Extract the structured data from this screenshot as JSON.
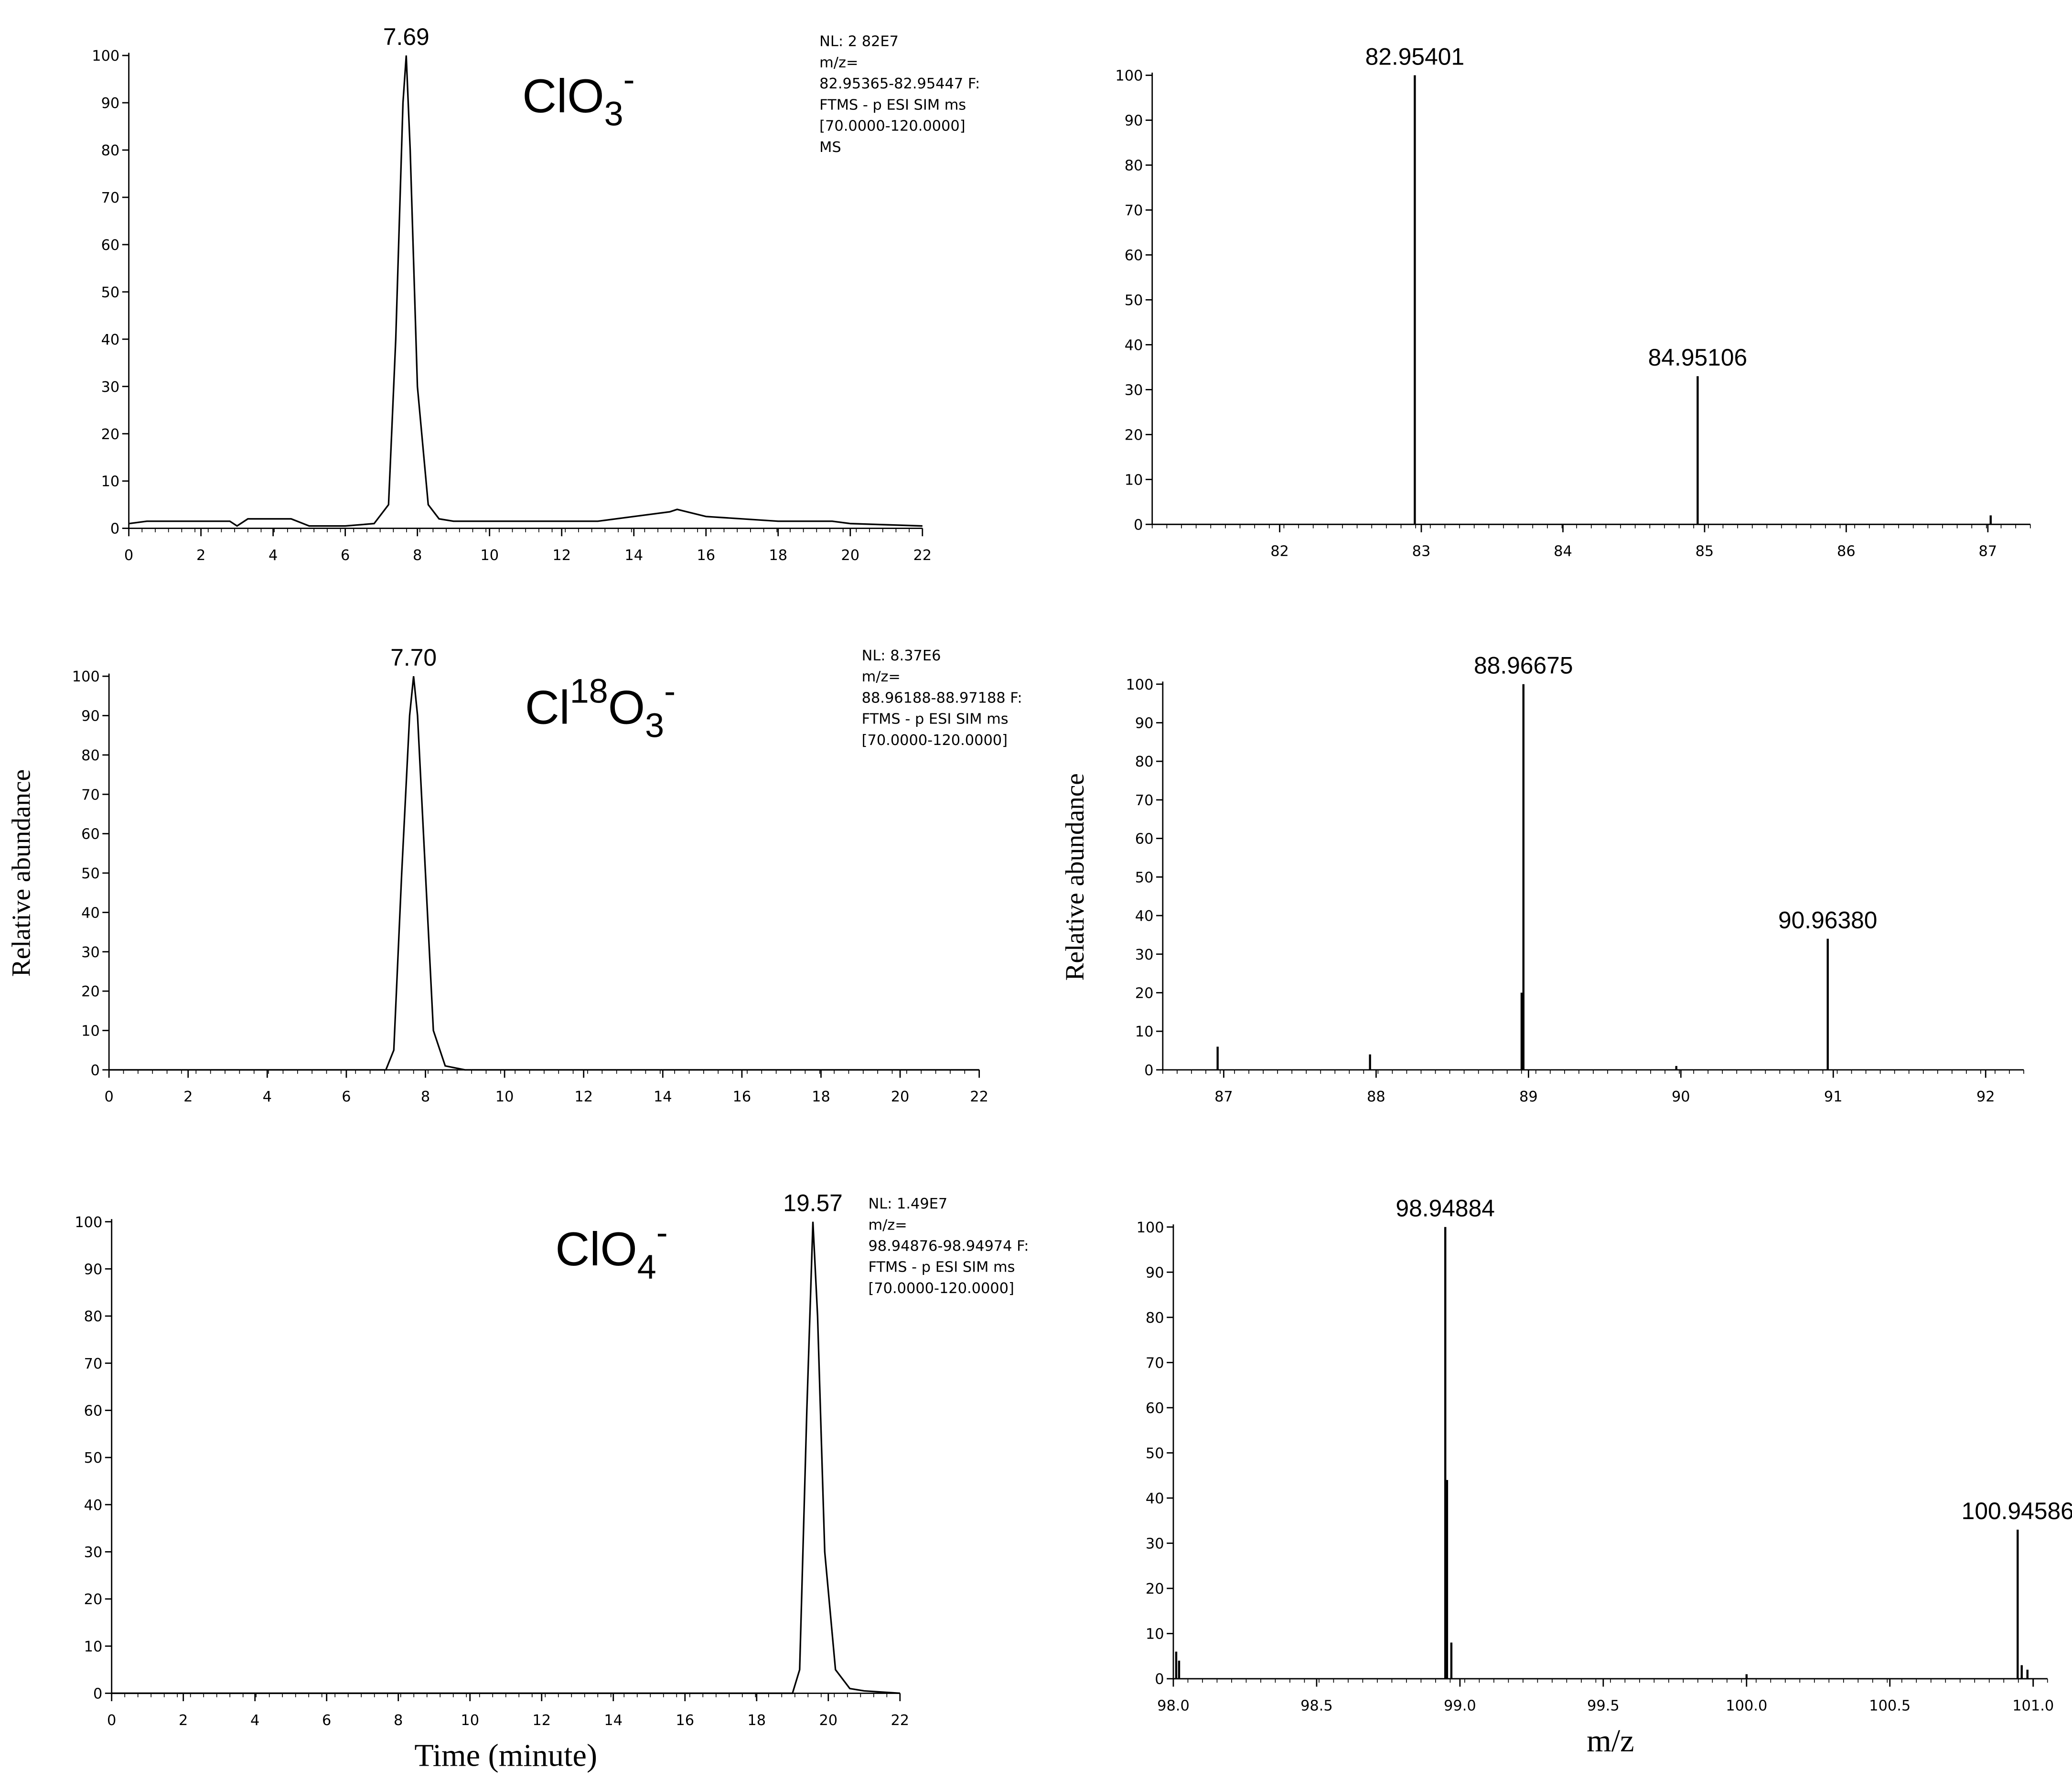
{
  "chart_data": [
    {
      "type": "line",
      "color": "#000000",
      "species": [
        {
          "text": "ClO"
        },
        {
          "text": "3",
          "position": "sub"
        },
        {
          "text": "-",
          "position": "sup"
        }
      ],
      "info": [
        "NL: 2 82E7",
        "m/z=",
        "82.95365-82.95447 F:",
        "FTMS - p ESI SIM ms",
        "[70.0000-120.0000]",
        "MS"
      ],
      "annotations": [
        {
          "x": 7.69,
          "y": 100,
          "label": "7.69"
        }
      ],
      "x": [
        0,
        0.5,
        1,
        2,
        2.8,
        3,
        3.3,
        4,
        4.5,
        5,
        6,
        6.8,
        7.2,
        7.4,
        7.6,
        7.69,
        7.8,
        8.0,
        8.3,
        8.6,
        9,
        10,
        12,
        13,
        14,
        15,
        15.2,
        16,
        18,
        19.5,
        20,
        22
      ],
      "values": [
        1,
        1.5,
        1.5,
        1.5,
        1.5,
        0.5,
        2,
        2,
        2,
        0.5,
        0.5,
        1,
        5,
        40,
        90,
        100,
        80,
        30,
        5,
        2,
        1.5,
        1.5,
        1.5,
        1.5,
        2.5,
        3.5,
        4,
        2.5,
        1.5,
        1.5,
        1,
        0.5
      ],
      "xlim": [
        0,
        22
      ],
      "xticks": [
        0,
        2,
        4,
        6,
        8,
        10,
        12,
        14,
        16,
        18,
        20,
        22
      ],
      "ylim": [
        0,
        100
      ],
      "yticks": [
        0,
        10,
        20,
        30,
        40,
        50,
        60,
        70,
        80,
        90,
        100
      ]
    },
    {
      "type": "line",
      "color": "#000000",
      "y_label": "Relative abundance",
      "species": [
        {
          "text": "Cl"
        },
        {
          "text": "18",
          "position": "sup"
        },
        {
          "text": "O"
        },
        {
          "text": "3",
          "position": "sub"
        },
        {
          "text": "-",
          "position": "sup"
        }
      ],
      "info": [
        "NL: 8.37E6",
        "m/z=",
        "88.96188-88.97188 F:",
        "FTMS - p ESI SIM ms",
        "[70.0000-120.0000]"
      ],
      "annotations": [
        {
          "x": 7.7,
          "y": 100,
          "label": "7.70"
        }
      ],
      "x": [
        0,
        2,
        4,
        6,
        7,
        7.2,
        7.4,
        7.6,
        7.7,
        7.8,
        8.0,
        8.2,
        8.5,
        9,
        10,
        22
      ],
      "values": [
        0,
        0,
        0,
        0,
        0,
        5,
        50,
        90,
        100,
        90,
        50,
        10,
        1,
        0,
        0,
        0
      ],
      "xlim": [
        0,
        22
      ],
      "xticks": [
        0,
        2,
        4,
        6,
        8,
        10,
        12,
        14,
        16,
        18,
        20,
        22
      ],
      "ylim": [
        0,
        100
      ],
      "yticks": [
        0,
        10,
        20,
        30,
        40,
        50,
        60,
        70,
        80,
        90,
        100
      ]
    },
    {
      "type": "line",
      "color": "#000000",
      "x_label": "Time (minute)",
      "species": [
        {
          "text": "ClO"
        },
        {
          "text": "4",
          "position": "sub"
        },
        {
          "text": "-",
          "position": "sup"
        }
      ],
      "info": [
        "NL: 1.49E7",
        "m/z=",
        "98.94876-98.94974 F:",
        "FTMS - p ESI SIM ms",
        "[70.0000-120.0000]"
      ],
      "annotations": [
        {
          "x": 19.57,
          "y": 100,
          "label": "19.57"
        }
      ],
      "x": [
        0,
        18,
        19,
        19.2,
        19.4,
        19.57,
        19.7,
        19.9,
        20.2,
        20.6,
        21,
        22
      ],
      "values": [
        0,
        0,
        0,
        5,
        60,
        100,
        80,
        30,
        5,
        1,
        0.5,
        0
      ],
      "xlim": [
        0,
        22
      ],
      "xticks": [
        0,
        2,
        4,
        6,
        8,
        10,
        12,
        14,
        16,
        18,
        20,
        22
      ],
      "ylim": [
        0,
        100
      ],
      "yticks": [
        0,
        10,
        20,
        30,
        40,
        50,
        60,
        70,
        80,
        90,
        100
      ]
    },
    {
      "type": "stick",
      "color": "#000000",
      "annotations": [
        {
          "x": 82.95401,
          "y": 100,
          "label": "82.95401"
        },
        {
          "x": 84.95106,
          "y": 33,
          "label": "84.95106"
        }
      ],
      "x": [
        82.95401,
        84.95106,
        87.02
      ],
      "values": [
        100,
        33,
        2
      ],
      "xlim": [
        81.1,
        87.3
      ],
      "xticks": [
        82,
        83,
        84,
        85,
        86,
        87
      ],
      "ylim": [
        0,
        100
      ],
      "yticks": [
        0,
        10,
        20,
        30,
        40,
        50,
        60,
        70,
        80,
        90,
        100
      ]
    },
    {
      "type": "stick",
      "color": "#000000",
      "y_label": "Relative abundance",
      "annotations": [
        {
          "x": 88.96675,
          "y": 100,
          "label": "88.96675"
        },
        {
          "x": 90.9638,
          "y": 34,
          "label": "90.96380"
        }
      ],
      "x": [
        86.96,
        87.96,
        88.96675,
        88.955,
        89.97,
        90.9638
      ],
      "values": [
        6,
        4,
        100,
        20,
        1,
        34
      ],
      "xlim": [
        86.6,
        92.25
      ],
      "xticks": [
        87,
        88,
        89,
        90,
        91,
        92
      ],
      "ylim": [
        0,
        100
      ],
      "yticks": [
        0,
        10,
        20,
        30,
        40,
        50,
        60,
        70,
        80,
        90,
        100
      ]
    },
    {
      "type": "stick",
      "color": "#000000",
      "x_label": "m/z",
      "annotations": [
        {
          "x": 98.94884,
          "y": 100,
          "label": "98.94884"
        },
        {
          "x": 100.94586,
          "y": 33,
          "label": "100.94586"
        }
      ],
      "x": [
        98.01,
        98.02,
        98.94884,
        98.955,
        98.97,
        100.0,
        100.94586,
        100.96,
        100.98
      ],
      "values": [
        6,
        4,
        100,
        44,
        8,
        1,
        33,
        3,
        2
      ],
      "xlim": [
        98.0,
        101.05
      ],
      "xticks": [
        {
          "value": 98.0,
          "label": "98.0"
        },
        {
          "value": 98.5,
          "label": "98.5"
        },
        {
          "value": 99.0,
          "label": "99.0"
        },
        {
          "value": 99.5,
          "label": "99.5"
        },
        {
          "value": 100.0,
          "label": "100.0"
        },
        {
          "value": 100.5,
          "label": "100.5"
        },
        {
          "value": 101.0,
          "label": "101.0"
        },
        101
      ],
      "ylim": [
        0,
        100
      ],
      "yticks": [
        0,
        10,
        20,
        30,
        40,
        50,
        60,
        70,
        80,
        90,
        100
      ]
    }
  ]
}
